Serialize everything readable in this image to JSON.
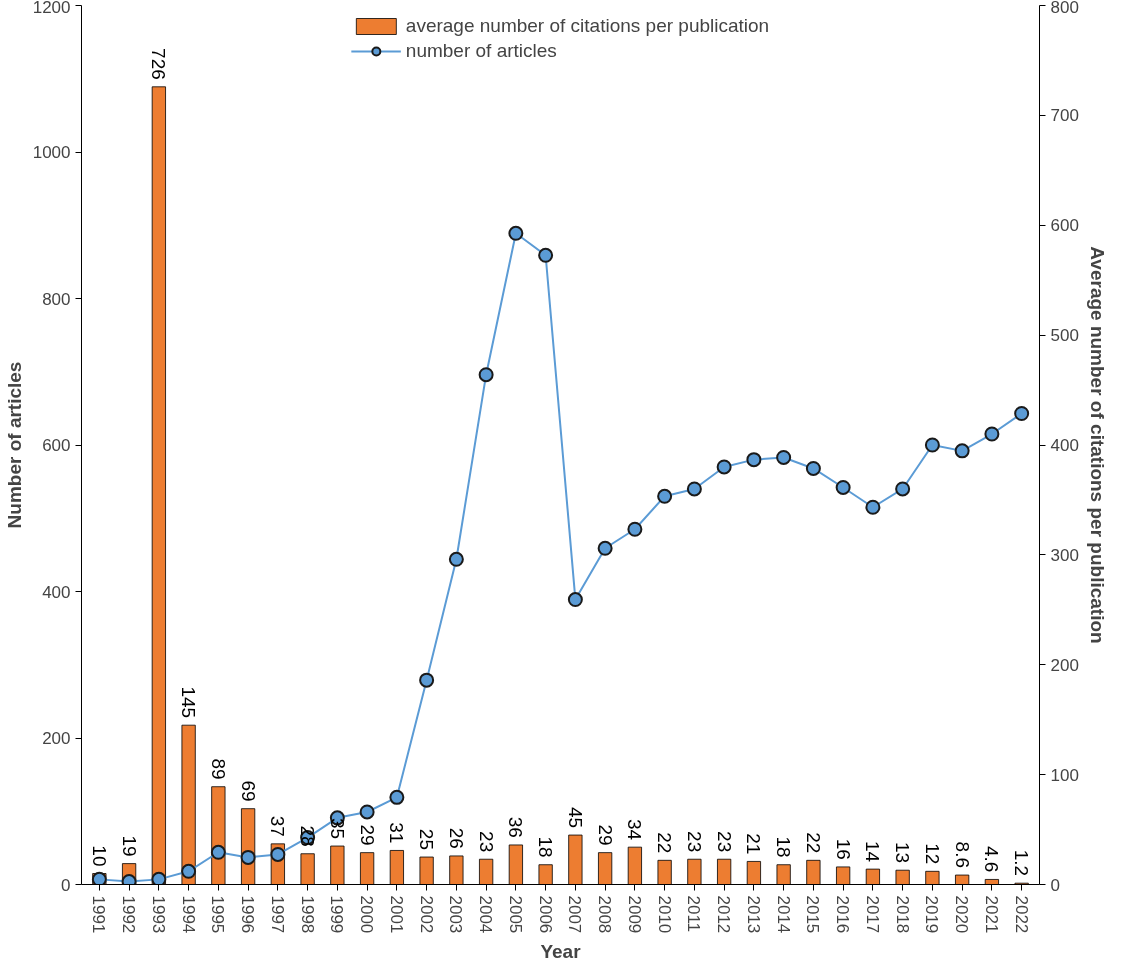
{
  "chart_data": {
    "type": "bar",
    "xlabel": "Year",
    "ylabel": "Number of articles",
    "y2label": "Average number of citations per publication",
    "categories": [
      "1991",
      "1992",
      "1993",
      "1994",
      "1995",
      "1996",
      "1997",
      "1998",
      "1999",
      "2000",
      "2001",
      "2002",
      "2003",
      "2004",
      "2005",
      "2006",
      "2007",
      "2008",
      "2009",
      "2010",
      "2011",
      "2012",
      "2013",
      "2014",
      "2015",
      "2016",
      "2017",
      "2018",
      "2019",
      "2020",
      "2021",
      "2022"
    ],
    "series": [
      {
        "name": "average number of citations per publication",
        "axis": "y2",
        "color": "#ed7d31",
        "data_labels": true,
        "values": [
          10,
          19,
          726,
          145,
          89,
          69,
          37,
          28,
          35,
          29,
          31,
          25,
          26,
          23,
          36,
          18,
          45,
          29,
          34,
          22,
          23,
          23,
          21,
          18,
          22,
          16,
          14,
          13,
          12,
          8.6,
          4.6,
          1.2
        ]
      },
      {
        "name": "number of articles",
        "type": "line",
        "color": "#5b9bd5",
        "marker": "circle",
        "values": [
          7,
          4,
          7,
          18,
          44,
          37,
          41,
          64,
          91,
          99,
          119,
          279,
          444,
          696,
          889,
          859,
          389,
          459,
          485,
          530,
          540,
          570,
          580,
          583,
          568,
          542,
          515,
          540,
          600,
          592,
          615,
          643
        ]
      }
    ],
    "ylim": [
      0,
      1200
    ],
    "yticks": [
      0,
      200,
      400,
      600,
      800,
      1000,
      1200
    ],
    "y2lim": [
      0,
      800
    ],
    "y2ticks": [
      0,
      100,
      200,
      300,
      400,
      500,
      600,
      700,
      800
    ],
    "grid": false,
    "legend": "top"
  }
}
